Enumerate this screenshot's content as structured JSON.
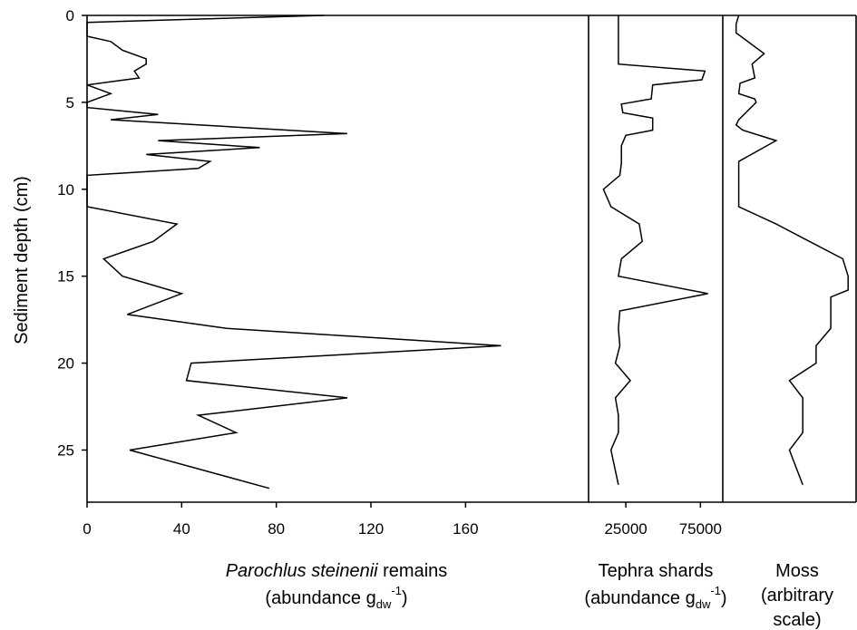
{
  "chart_data": [
    {
      "type": "line",
      "orientation": "depth-profile",
      "ylabel": "Sediment depth (cm)",
      "ylim": [
        0,
        28
      ],
      "yticks": [
        "0",
        "5",
        "10",
        "15",
        "20",
        "25"
      ],
      "y_inverted": true,
      "xlabel_line1_italic": "Parochlus steinenii",
      "xlabel_line1_rest": " remains",
      "xlabel_line2_pre": "(abundance g",
      "xlabel_line2_sub": "dw",
      "xlabel_line2_sup": "-1",
      "xlabel_line2_post": ")",
      "xlim": [
        0,
        212
      ],
      "xticks": [
        "0",
        "40",
        "80",
        "120",
        "160"
      ],
      "series": [
        {
          "x": [
            100,
            0,
            0,
            0,
            10,
            15,
            25,
            25,
            20,
            22,
            0,
            10,
            0,
            0,
            30,
            10,
            110,
            30,
            73,
            25,
            52,
            47,
            0,
            0,
            0,
            38,
            28,
            7,
            15,
            40,
            17,
            59,
            175,
            44,
            42,
            110,
            47,
            63,
            18,
            77
          ],
          "y": [
            0,
            0.4,
            0.8,
            1.2,
            1.5,
            2.0,
            2.5,
            2.8,
            3.2,
            3.6,
            4.0,
            4.5,
            5.0,
            5.3,
            5.7,
            6.0,
            6.8,
            7.2,
            7.6,
            8.0,
            8.4,
            8.8,
            9.2,
            10.0,
            11.0,
            12.0,
            13.0,
            14.0,
            15.0,
            16.0,
            17.2,
            18.0,
            19.0,
            20.0,
            21.0,
            22.0,
            23.0,
            24.0,
            25.0,
            27.2
          ]
        }
      ]
    },
    {
      "type": "line",
      "orientation": "depth-profile",
      "xlabel_line1": "Tephra shards",
      "xlabel_line2_pre": "(abundance g",
      "xlabel_line2_sub": "dw",
      "xlabel_line2_sup": "-1",
      "xlabel_line2_post": ")",
      "xlim": [
        0,
        90000
      ],
      "xticks": [
        "25000",
        "75000"
      ],
      "xtick_values": [
        25000,
        75000
      ],
      "series": [
        {
          "x": [
            20000,
            20000,
            20000,
            20000,
            20000,
            78000,
            76000,
            43000,
            42000,
            22000,
            23000,
            43000,
            43000,
            25000,
            22000,
            22000,
            21000,
            10000,
            15000,
            34000,
            36000,
            22000,
            20000,
            80000,
            21000,
            20000,
            21000,
            18000,
            28000,
            18000,
            20000,
            20000,
            15000,
            20000
          ],
          "y": [
            0,
            0.5,
            1,
            2,
            2.8,
            3.2,
            3.7,
            4.0,
            4.8,
            5.1,
            5.6,
            5.9,
            6.6,
            6.9,
            7.5,
            8.5,
            9.2,
            10.0,
            11.0,
            12.0,
            13.0,
            14.0,
            15.0,
            16.0,
            17.0,
            18.0,
            19.0,
            20.0,
            21.0,
            22.0,
            23.0,
            24.0,
            25.0,
            27.0
          ]
        }
      ]
    },
    {
      "type": "line",
      "orientation": "depth-profile",
      "xlabel_line1": "Moss",
      "xlabel_line2": "(arbitrary",
      "xlabel_line3": "scale)",
      "xlim": [
        0,
        10
      ],
      "series": [
        {
          "x": [
            1.2,
            1.0,
            1.0,
            3.1,
            2.2,
            2.4,
            1.3,
            1.2,
            2.4,
            2.5,
            1.2,
            1.0,
            1.5,
            4.0,
            1.2,
            1.2,
            1.2,
            4.0,
            6.5,
            9.0,
            9.4,
            9.4,
            8.1,
            8.1,
            8.1,
            7.0,
            7.0,
            5.0,
            6.0,
            6.0,
            6.0,
            5.0,
            6.0
          ],
          "y": [
            0,
            0.5,
            1.0,
            2.2,
            2.8,
            3.6,
            3.9,
            4.5,
            4.8,
            5.0,
            6.0,
            6.3,
            6.6,
            7.2,
            8.4,
            10.0,
            11.0,
            12.0,
            13.0,
            14.0,
            15.0,
            15.8,
            16.2,
            17.0,
            18.0,
            19.0,
            20.0,
            21.0,
            22.0,
            23.0,
            24.0,
            25.0,
            27.0
          ]
        }
      ]
    }
  ]
}
